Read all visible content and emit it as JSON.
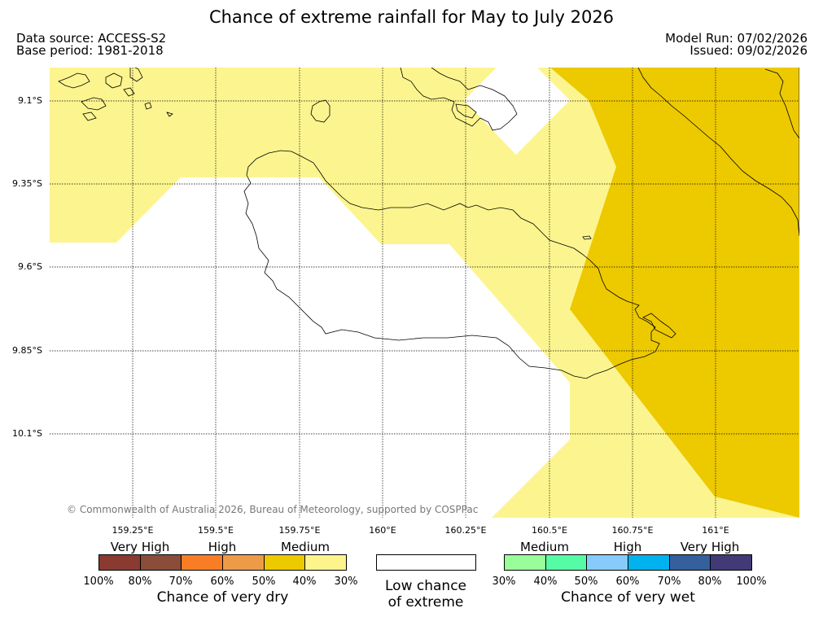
{
  "title": "Chance of extreme rainfall for May to July 2026",
  "data_source": "Data source: ACCESS-S2",
  "base_period": "Base period: 1981-2018",
  "model_run": "Model Run: 07/02/2026",
  "issued": "Issued: 09/02/2026",
  "latitudes": [
    "9.1°S",
    "9.35°S",
    "9.6°S",
    "9.85°S",
    "10.1°S"
  ],
  "longitudes": [
    "159.25°E",
    "159.5°E",
    "159.75°E",
    "160°E",
    "160.25°E",
    "160.5°E",
    "160.75°E",
    "161°E"
  ],
  "copyright": "© Commonwealth of Australia 2026, Bureau of Meteorology, supported by COSPPac",
  "legend": {
    "dry": {
      "categories": [
        "Very High",
        "High",
        "Medium"
      ],
      "colors": [
        "#8b3a31",
        "#8b4c3a",
        "#f97d25",
        "#ee9b48",
        "#edc900",
        "#fdf58c"
      ],
      "ticks": [
        "100%",
        "80%",
        "70%",
        "60%",
        "50%",
        "40%",
        "30%"
      ],
      "title": "Chance of very dry"
    },
    "low": {
      "label_line1": "Low chance",
      "label_line2": "of extreme",
      "color": "#ffffff"
    },
    "wet": {
      "categories": [
        "Medium",
        "High",
        "Very High"
      ],
      "colors": [
        "#99fd99",
        "#55fca5",
        "#87cbfa",
        "#00b2ee",
        "#34609e",
        "#413a77"
      ],
      "ticks": [
        "30%",
        "40%",
        "50%",
        "60%",
        "70%",
        "80%",
        "100%"
      ],
      "title": "Chance of very wet"
    }
  },
  "map_colors": {
    "medium_dry": "#edc900",
    "low_dry": "#fcf58f"
  }
}
